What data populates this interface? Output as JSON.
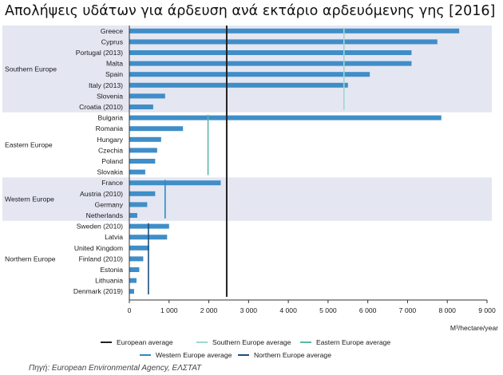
{
  "title": "Απολήψεις υδάτων για άρδευση ανά εκτάριο αρδευόμενης γης [2016]",
  "source": "Πηγή: European Environmental Agency, ΕΛΣΤΑΤ",
  "chart_data": {
    "type": "bar",
    "orientation": "horizontal",
    "title": "Απολήψεις υδάτων για άρδευση ανά εκτάριο αρδευόμενης γης [2016]",
    "xlabel": "M³/hectare/year",
    "xlim": [
      0,
      9000
    ],
    "xticks": [
      0,
      1000,
      2000,
      3000,
      4000,
      5000,
      6000,
      7000,
      8000,
      9000
    ],
    "xtick_labels": [
      "0",
      "1 000",
      "2 000",
      "3 000",
      "4 000",
      "5 000",
      "6 000",
      "7 000",
      "8 000",
      "9 000"
    ],
    "bar_color": "#3f8ec8",
    "groups": [
      {
        "name": "Southern Europe",
        "shaded": true,
        "categories": [
          "Greece",
          "Cyprus",
          "Portugal (2013)",
          "Malta",
          "Spain",
          "Italy (2013)",
          "Slovenia",
          "Croatia (2010)"
        ],
        "values": [
          8300,
          7750,
          7100,
          7100,
          6050,
          5500,
          900,
          600
        ]
      },
      {
        "name": "Eastern Europe",
        "shaded": false,
        "categories": [
          "Bulgaria",
          "Romania",
          "Hungary",
          "Czechia",
          "Poland",
          "Slovakia"
        ],
        "values": [
          7850,
          1350,
          800,
          700,
          650,
          400
        ]
      },
      {
        "name": "Western Europe",
        "shaded": true,
        "categories": [
          "France",
          "Austria (2010)",
          "Germany",
          "Netherlands"
        ],
        "values": [
          2300,
          650,
          450,
          200
        ]
      },
      {
        "name": "Northern Europe",
        "shaded": false,
        "categories": [
          "Sweden (2010)",
          "Latvia",
          "United Kingdom",
          "Finland (2010)",
          "Estonia",
          "Lithuania",
          "Denmark (2019)"
        ],
        "values": [
          1000,
          950,
          500,
          350,
          250,
          180,
          120
        ]
      }
    ],
    "averages": [
      {
        "name": "European average",
        "value": 2450,
        "color": "#222222",
        "span": "all"
      },
      {
        "name": "Southern Europe average",
        "value": 5400,
        "color": "#9ed8d0",
        "span": "Southern Europe"
      },
      {
        "name": "Eastern Europe average",
        "value": 1980,
        "color": "#5bb8a6",
        "span": "Eastern Europe"
      },
      {
        "name": "Western Europe average",
        "value": 900,
        "color": "#2e8bc0",
        "span": "Western Europe"
      },
      {
        "name": "Northern Europe average",
        "value": 480,
        "color": "#1b4f7a",
        "span": "Northern Europe"
      }
    ],
    "band_color": "#e4e6f2",
    "legend_position": "bottom"
  }
}
